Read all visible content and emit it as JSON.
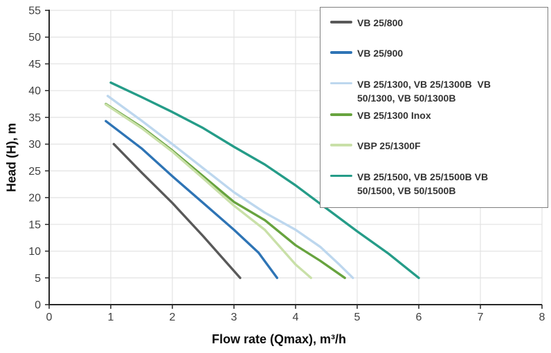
{
  "chart_data": {
    "type": "line",
    "title": "",
    "xlabel": "Flow rate (Qmax), m³/h",
    "ylabel": "Head (H), m",
    "xlim": [
      0,
      8
    ],
    "ylim": [
      0,
      55
    ],
    "xticks": [
      0,
      1,
      2,
      3,
      4,
      5,
      6,
      7,
      8
    ],
    "yticks": [
      0,
      5,
      10,
      15,
      20,
      25,
      30,
      35,
      40,
      45,
      50,
      55
    ],
    "grid": true,
    "legend_position": "top-right",
    "series": [
      {
        "id": "vb-25-800",
        "label_lines": [
          "VB 25/800"
        ],
        "color": "#595959",
        "points": [
          [
            1.05,
            30
          ],
          [
            1.5,
            24.7
          ],
          [
            2,
            19
          ],
          [
            2.5,
            12.8
          ],
          [
            3.1,
            5
          ]
        ]
      },
      {
        "id": "vb-25-900",
        "label_lines": [
          "VB 25/900"
        ],
        "color": "#2e74b5",
        "points": [
          [
            0.92,
            34.3
          ],
          [
            1.5,
            29.2
          ],
          [
            2,
            24
          ],
          [
            2.5,
            19
          ],
          [
            3,
            14
          ],
          [
            3.4,
            9.7
          ],
          [
            3.7,
            5
          ]
        ]
      },
      {
        "id": "vb-25-1300-group",
        "label_lines": [
          "VB 25/1300, VB 25/1300B  VB",
          "50/1300, VB 50/1300B"
        ],
        "color": "#bdd7ee",
        "points": [
          [
            0.95,
            39
          ],
          [
            1.5,
            34.4
          ],
          [
            2,
            30
          ],
          [
            2.5,
            25.5
          ],
          [
            3,
            21
          ],
          [
            3.5,
            17.2
          ],
          [
            4,
            14
          ],
          [
            4.4,
            10.8
          ],
          [
            4.7,
            7.6
          ],
          [
            4.93,
            5
          ]
        ]
      },
      {
        "id": "vb-25-1300-inox",
        "label_lines": [
          "VB 25/1300 Inox"
        ],
        "color": "#67a33e",
        "points": [
          [
            0.92,
            37.5
          ],
          [
            1.5,
            33.2
          ],
          [
            2,
            28.8
          ],
          [
            2.5,
            24
          ],
          [
            3,
            19.2
          ],
          [
            3.5,
            15.8
          ],
          [
            4,
            11.1
          ],
          [
            4.4,
            8.2
          ],
          [
            4.8,
            5
          ]
        ]
      },
      {
        "id": "vbp-25-1300f",
        "label_lines": [
          "VBP 25/1300F"
        ],
        "color": "#c9e0a8",
        "points": [
          [
            0.92,
            37.4
          ],
          [
            1.5,
            33
          ],
          [
            2,
            28.6
          ],
          [
            2.5,
            23.6
          ],
          [
            3,
            18.5
          ],
          [
            3.5,
            14
          ],
          [
            4,
            7.5
          ],
          [
            4.15,
            6
          ],
          [
            4.25,
            5
          ]
        ]
      },
      {
        "id": "vb-25-1500-group",
        "label_lines": [
          "VB 25/1500, VB 25/1500B VB",
          "50/1500, VB 50/1500B"
        ],
        "color": "#259c88",
        "points": [
          [
            1.0,
            41.5
          ],
          [
            1.5,
            38.8
          ],
          [
            2,
            36
          ],
          [
            2.5,
            33
          ],
          [
            3,
            29.5
          ],
          [
            3.5,
            26.2
          ],
          [
            4,
            22.3
          ],
          [
            4.5,
            18
          ],
          [
            5,
            13.7
          ],
          [
            5.5,
            9.6
          ],
          [
            6,
            5
          ]
        ]
      }
    ]
  }
}
